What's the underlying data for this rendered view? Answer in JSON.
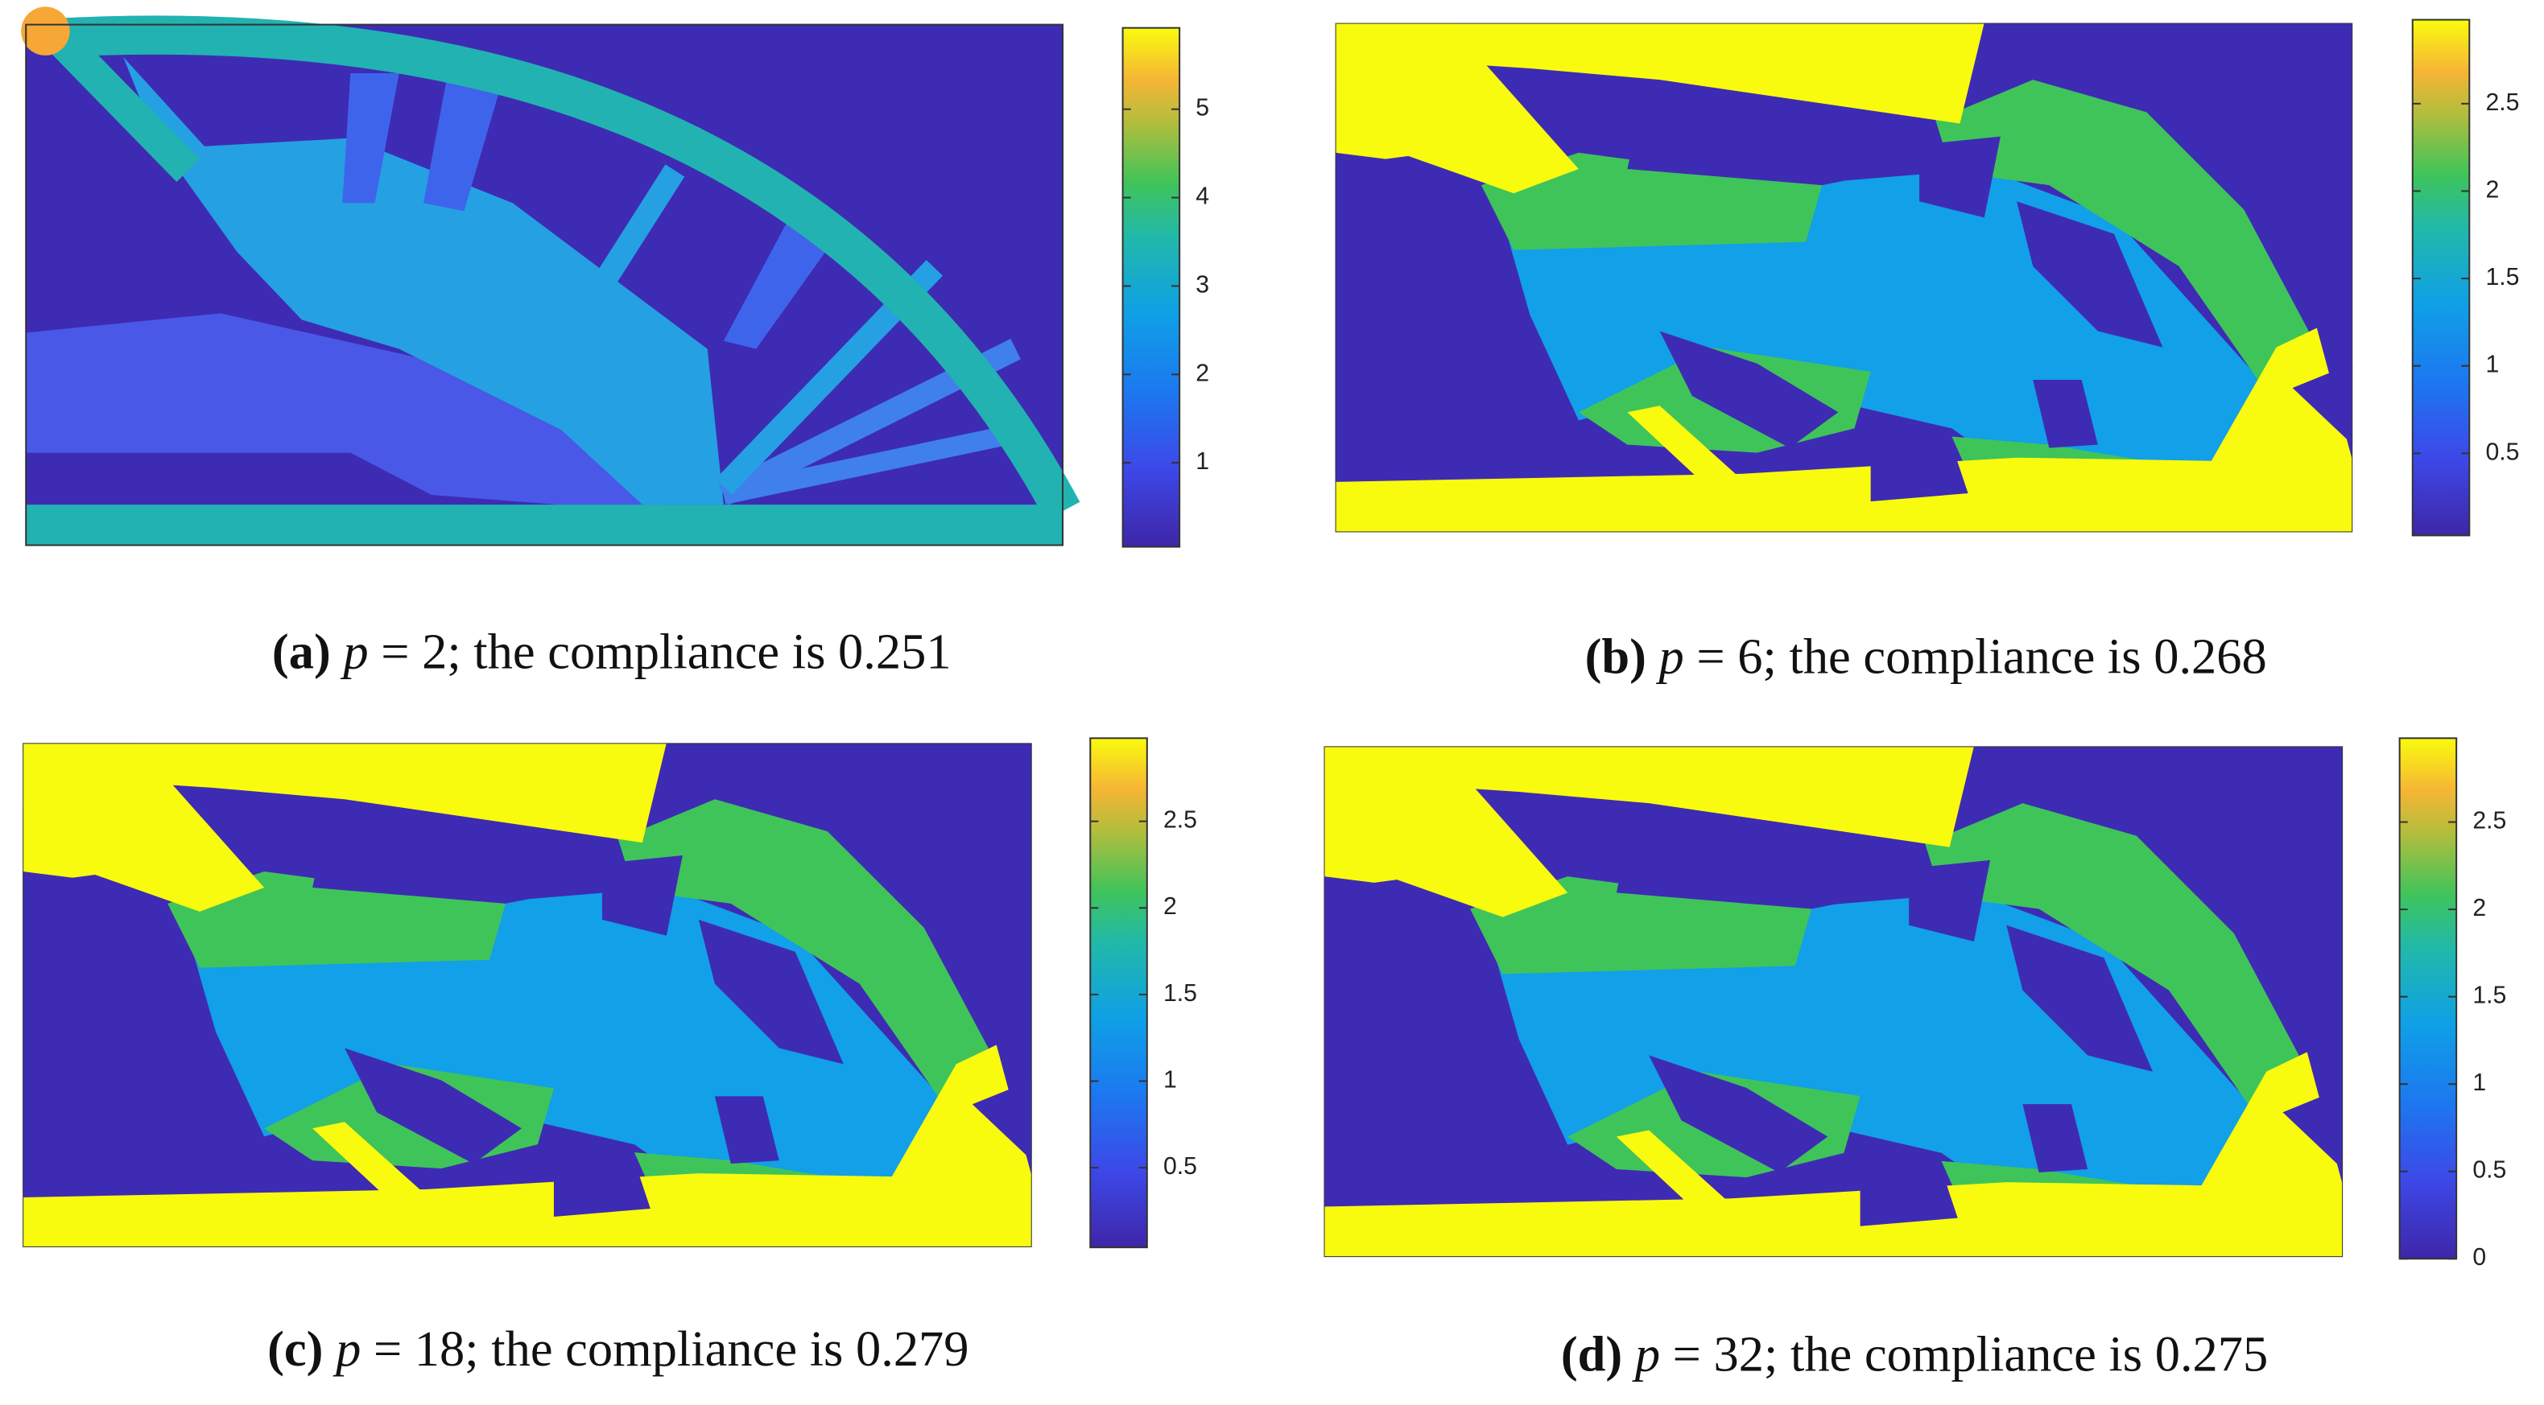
{
  "panels": [
    {
      "label": "(a)",
      "variable": "p",
      "caption": "= 2; the compliance is 0.251",
      "colorbar": {
        "clim": [
          0.05,
          5.92
        ],
        "ticks": [
          1,
          2,
          3,
          4,
          5
        ]
      }
    },
    {
      "label": "(b)",
      "variable": "p",
      "caption": "= 6; the compliance is 0.268",
      "colorbar": {
        "clim": [
          0.03,
          2.98
        ],
        "ticks": [
          0.5,
          1,
          1.5,
          2,
          2.5
        ]
      }
    },
    {
      "label": "(c)",
      "variable": "p",
      "caption": "= 18; the compliance is 0.279",
      "colorbar": {
        "clim": [
          0.04,
          2.98
        ],
        "ticks": [
          0.5,
          1,
          1.5,
          2,
          2.5
        ]
      }
    },
    {
      "label": "(d)",
      "variable": "p",
      "caption": "= 32; the compliance is 0.275",
      "colorbar": {
        "clim": [
          0,
          2.98
        ],
        "ticks": [
          0,
          0.5,
          1,
          1.5,
          2,
          2.5
        ]
      }
    }
  ]
}
